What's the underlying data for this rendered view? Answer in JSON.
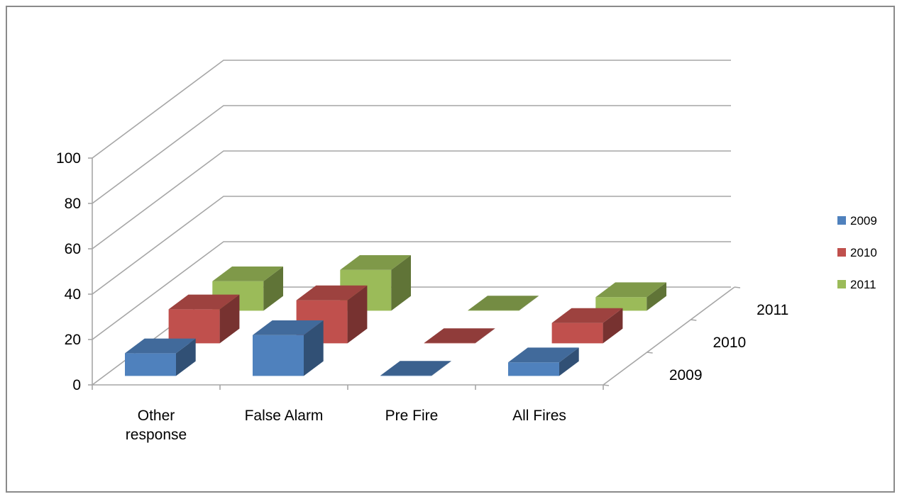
{
  "chart_data": {
    "type": "bar",
    "subtype": "3d-column",
    "categories": [
      "Other response",
      "False Alarm",
      "Pre Fire",
      "All Fires"
    ],
    "depth_labels": [
      "2009",
      "2010",
      "2011"
    ],
    "series": [
      {
        "name": "2009",
        "color": "#4f81bd",
        "values": [
          10,
          18,
          0,
          6
        ]
      },
      {
        "name": "2010",
        "color": "#c0504d",
        "values": [
          15,
          19,
          0,
          9
        ]
      },
      {
        "name": "2011",
        "color": "#9bbb59",
        "values": [
          13,
          18,
          0,
          6
        ]
      }
    ],
    "yticks": [
      "0",
      "20",
      "40",
      "60",
      "80",
      "100"
    ],
    "ylim": [
      0,
      100
    ],
    "grid": true,
    "legend": "right"
  }
}
